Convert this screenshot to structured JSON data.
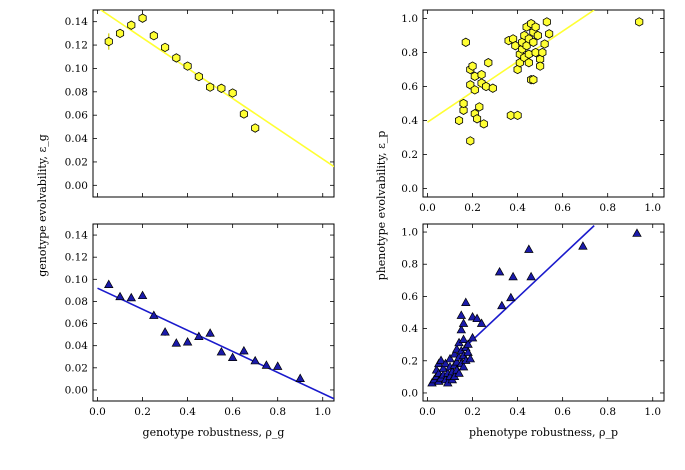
{
  "figure": {
    "left_ylabel": "genotype evolvability, ε_g",
    "right_ylabel": "phenotype evolvability, ε_p",
    "left_xlabel": "genotype robustness, ρ_g",
    "right_xlabel": "phenotype robustness, ρ_p"
  },
  "colors": {
    "hex_fill": "#ffff33",
    "hex_fit_line": "#ffff33",
    "tri_fill": "#1a1aaa",
    "tri_fit_line": "#1a1acc",
    "marker_edge": "#000000",
    "errorbar": "#cccc00"
  },
  "chart_data": [
    {
      "id": "top-left",
      "type": "scatter",
      "marker": "hexagon",
      "xlim": [
        -0.02,
        1.05
      ],
      "ylim": [
        -0.01,
        0.15
      ],
      "xticks": [
        0.0,
        0.2,
        0.4,
        0.6,
        0.8,
        1.0
      ],
      "yticks": [
        0.0,
        0.02,
        0.04,
        0.06,
        0.08,
        0.1,
        0.12,
        0.14
      ],
      "show_xtick_labels": false,
      "xtick_labels": [
        "0.0",
        "0.2",
        "0.4",
        "0.6",
        "0.8",
        "1.0"
      ],
      "ytick_labels": [
        "0.00",
        "0.02",
        "0.04",
        "0.06",
        "0.08",
        "0.10",
        "0.12",
        "0.14"
      ],
      "points": [
        {
          "x": 0.05,
          "y": 0.123,
          "err": 0.007
        },
        {
          "x": 0.1,
          "y": 0.13
        },
        {
          "x": 0.15,
          "y": 0.137
        },
        {
          "x": 0.2,
          "y": 0.143
        },
        {
          "x": 0.25,
          "y": 0.128
        },
        {
          "x": 0.3,
          "y": 0.118
        },
        {
          "x": 0.35,
          "y": 0.109
        },
        {
          "x": 0.4,
          "y": 0.102
        },
        {
          "x": 0.45,
          "y": 0.093
        },
        {
          "x": 0.5,
          "y": 0.084
        },
        {
          "x": 0.55,
          "y": 0.083
        },
        {
          "x": 0.6,
          "y": 0.079
        },
        {
          "x": 0.65,
          "y": 0.061
        },
        {
          "x": 0.7,
          "y": 0.049
        }
      ],
      "fit_line": {
        "x": [
          0.0,
          1.05
        ],
        "y": [
          0.152,
          0.016
        ]
      }
    },
    {
      "id": "top-right",
      "type": "scatter",
      "marker": "hexagon",
      "xlim": [
        -0.02,
        1.05
      ],
      "ylim": [
        -0.05,
        1.05
      ],
      "xticks": [
        0.0,
        0.2,
        0.4,
        0.6,
        0.8,
        1.0
      ],
      "yticks": [
        0.0,
        0.2,
        0.4,
        0.6,
        0.8,
        1.0
      ],
      "show_xtick_labels": true,
      "xtick_labels": [
        "0.0",
        "0.2",
        "0.4",
        "0.6",
        "0.8",
        "1.0"
      ],
      "ytick_labels": [
        "0.0",
        "0.2",
        "0.4",
        "0.6",
        "0.8",
        "1.0"
      ],
      "points": [
        {
          "x": 0.17,
          "y": 0.86
        },
        {
          "x": 0.16,
          "y": 0.46
        },
        {
          "x": 0.14,
          "y": 0.4
        },
        {
          "x": 0.19,
          "y": 0.28
        },
        {
          "x": 0.19,
          "y": 0.61
        },
        {
          "x": 0.19,
          "y": 0.7
        },
        {
          "x": 0.2,
          "y": 0.72
        },
        {
          "x": 0.21,
          "y": 0.66
        },
        {
          "x": 0.21,
          "y": 0.58
        },
        {
          "x": 0.21,
          "y": 0.44
        },
        {
          "x": 0.22,
          "y": 0.41
        },
        {
          "x": 0.23,
          "y": 0.48
        },
        {
          "x": 0.24,
          "y": 0.62
        },
        {
          "x": 0.24,
          "y": 0.67
        },
        {
          "x": 0.25,
          "y": 0.38
        },
        {
          "x": 0.26,
          "y": 0.6
        },
        {
          "x": 0.27,
          "y": 0.74
        },
        {
          "x": 0.29,
          "y": 0.59
        },
        {
          "x": 0.16,
          "y": 0.5
        },
        {
          "x": 0.36,
          "y": 0.87
        },
        {
          "x": 0.37,
          "y": 0.43
        },
        {
          "x": 0.38,
          "y": 0.88
        },
        {
          "x": 0.39,
          "y": 0.84
        },
        {
          "x": 0.4,
          "y": 0.43
        },
        {
          "x": 0.4,
          "y": 0.7
        },
        {
          "x": 0.41,
          "y": 0.79
        },
        {
          "x": 0.41,
          "y": 0.74
        },
        {
          "x": 0.42,
          "y": 0.82
        },
        {
          "x": 0.42,
          "y": 0.86
        },
        {
          "x": 0.43,
          "y": 0.77
        },
        {
          "x": 0.43,
          "y": 0.9
        },
        {
          "x": 0.44,
          "y": 0.95
        },
        {
          "x": 0.44,
          "y": 0.84
        },
        {
          "x": 0.45,
          "y": 0.88
        },
        {
          "x": 0.45,
          "y": 0.79
        },
        {
          "x": 0.45,
          "y": 0.74
        },
        {
          "x": 0.46,
          "y": 0.97
        },
        {
          "x": 0.46,
          "y": 0.64
        },
        {
          "x": 0.47,
          "y": 0.92
        },
        {
          "x": 0.47,
          "y": 0.86
        },
        {
          "x": 0.47,
          "y": 0.64
        },
        {
          "x": 0.48,
          "y": 0.95
        },
        {
          "x": 0.48,
          "y": 0.8
        },
        {
          "x": 0.49,
          "y": 0.9
        },
        {
          "x": 0.5,
          "y": 0.76
        },
        {
          "x": 0.5,
          "y": 0.72
        },
        {
          "x": 0.51,
          "y": 0.8
        },
        {
          "x": 0.52,
          "y": 0.85
        },
        {
          "x": 0.53,
          "y": 0.98
        },
        {
          "x": 0.54,
          "y": 0.91
        },
        {
          "x": 0.94,
          "y": 0.98
        }
      ],
      "fit_line": {
        "x": [
          0.0,
          0.74
        ],
        "y": [
          0.39,
          1.05
        ]
      }
    },
    {
      "id": "bottom-left",
      "type": "scatter",
      "marker": "triangle",
      "xlim": [
        -0.02,
        1.05
      ],
      "ylim": [
        -0.01,
        0.15
      ],
      "xticks": [
        0.0,
        0.2,
        0.4,
        0.6,
        0.8,
        1.0
      ],
      "yticks": [
        0.0,
        0.02,
        0.04,
        0.06,
        0.08,
        0.1,
        0.12,
        0.14
      ],
      "show_xtick_labels": true,
      "xtick_labels": [
        "0.0",
        "0.2",
        "0.4",
        "0.6",
        "0.8",
        "1.0"
      ],
      "ytick_labels": [
        "0.00",
        "0.02",
        "0.04",
        "0.06",
        "0.08",
        "0.10",
        "0.12",
        "0.14"
      ],
      "points": [
        {
          "x": 0.05,
          "y": 0.095
        },
        {
          "x": 0.1,
          "y": 0.084
        },
        {
          "x": 0.15,
          "y": 0.083
        },
        {
          "x": 0.2,
          "y": 0.085
        },
        {
          "x": 0.25,
          "y": 0.067
        },
        {
          "x": 0.3,
          "y": 0.052,
          "err": 0.003
        },
        {
          "x": 0.35,
          "y": 0.042
        },
        {
          "x": 0.4,
          "y": 0.043
        },
        {
          "x": 0.45,
          "y": 0.048
        },
        {
          "x": 0.5,
          "y": 0.051,
          "err": 0.003
        },
        {
          "x": 0.55,
          "y": 0.034
        },
        {
          "x": 0.6,
          "y": 0.029
        },
        {
          "x": 0.65,
          "y": 0.035,
          "err": 0.003
        },
        {
          "x": 0.7,
          "y": 0.026
        },
        {
          "x": 0.75,
          "y": 0.022
        },
        {
          "x": 0.8,
          "y": 0.021
        },
        {
          "x": 0.9,
          "y": 0.01,
          "err": 0.004
        }
      ],
      "fit_line": {
        "x": [
          0.0,
          1.05
        ],
        "y": [
          0.092,
          -0.008
        ]
      }
    },
    {
      "id": "bottom-right",
      "type": "scatter",
      "marker": "triangle",
      "xlim": [
        -0.02,
        1.05
      ],
      "ylim": [
        -0.05,
        1.05
      ],
      "xticks": [
        0.0,
        0.2,
        0.4,
        0.6,
        0.8,
        1.0
      ],
      "yticks": [
        0.0,
        0.2,
        0.4,
        0.6,
        0.8,
        1.0
      ],
      "show_xtick_labels": true,
      "xtick_labels": [
        "0.0",
        "0.2",
        "0.4",
        "0.6",
        "0.8",
        "1.0"
      ],
      "ytick_labels": [
        "0.0",
        "0.2",
        "0.4",
        "0.6",
        "0.8",
        "1.0"
      ],
      "points": [
        {
          "x": 0.02,
          "y": 0.06
        },
        {
          "x": 0.03,
          "y": 0.08
        },
        {
          "x": 0.04,
          "y": 0.1
        },
        {
          "x": 0.04,
          "y": 0.14
        },
        {
          "x": 0.05,
          "y": 0.07
        },
        {
          "x": 0.05,
          "y": 0.12
        },
        {
          "x": 0.05,
          "y": 0.18
        },
        {
          "x": 0.06,
          "y": 0.09
        },
        {
          "x": 0.06,
          "y": 0.2
        },
        {
          "x": 0.07,
          "y": 0.11
        },
        {
          "x": 0.07,
          "y": 0.15
        },
        {
          "x": 0.08,
          "y": 0.08
        },
        {
          "x": 0.08,
          "y": 0.18
        },
        {
          "x": 0.09,
          "y": 0.12
        },
        {
          "x": 0.09,
          "y": 0.06
        },
        {
          "x": 0.1,
          "y": 0.1
        },
        {
          "x": 0.1,
          "y": 0.16
        },
        {
          "x": 0.1,
          "y": 0.21
        },
        {
          "x": 0.11,
          "y": 0.13
        },
        {
          "x": 0.11,
          "y": 0.08
        },
        {
          "x": 0.12,
          "y": 0.17
        },
        {
          "x": 0.12,
          "y": 0.24
        },
        {
          "x": 0.12,
          "y": 0.1
        },
        {
          "x": 0.13,
          "y": 0.19
        },
        {
          "x": 0.13,
          "y": 0.27
        },
        {
          "x": 0.13,
          "y": 0.14
        },
        {
          "x": 0.14,
          "y": 0.31
        },
        {
          "x": 0.14,
          "y": 0.22
        },
        {
          "x": 0.14,
          "y": 0.12
        },
        {
          "x": 0.15,
          "y": 0.39
        },
        {
          "x": 0.15,
          "y": 0.26
        },
        {
          "x": 0.15,
          "y": 0.18
        },
        {
          "x": 0.16,
          "y": 0.33
        },
        {
          "x": 0.16,
          "y": 0.23
        },
        {
          "x": 0.16,
          "y": 0.16
        },
        {
          "x": 0.17,
          "y": 0.28
        },
        {
          "x": 0.17,
          "y": 0.2
        },
        {
          "x": 0.17,
          "y": 0.56
        },
        {
          "x": 0.18,
          "y": 0.3
        },
        {
          "x": 0.18,
          "y": 0.25
        },
        {
          "x": 0.19,
          "y": 0.21
        },
        {
          "x": 0.2,
          "y": 0.34
        },
        {
          "x": 0.15,
          "y": 0.48
        },
        {
          "x": 0.16,
          "y": 0.43
        },
        {
          "x": 0.2,
          "y": 0.47
        },
        {
          "x": 0.22,
          "y": 0.46
        },
        {
          "x": 0.24,
          "y": 0.43
        },
        {
          "x": 0.32,
          "y": 0.75
        },
        {
          "x": 0.33,
          "y": 0.54
        },
        {
          "x": 0.37,
          "y": 0.59
        },
        {
          "x": 0.38,
          "y": 0.72
        },
        {
          "x": 0.45,
          "y": 0.89
        },
        {
          "x": 0.46,
          "y": 0.72
        },
        {
          "x": 0.69,
          "y": 0.91
        },
        {
          "x": 0.93,
          "y": 0.99
        }
      ],
      "fit_line": {
        "x": [
          0.14,
          0.74
        ],
        "y": [
          0.25,
          1.04
        ]
      }
    }
  ]
}
